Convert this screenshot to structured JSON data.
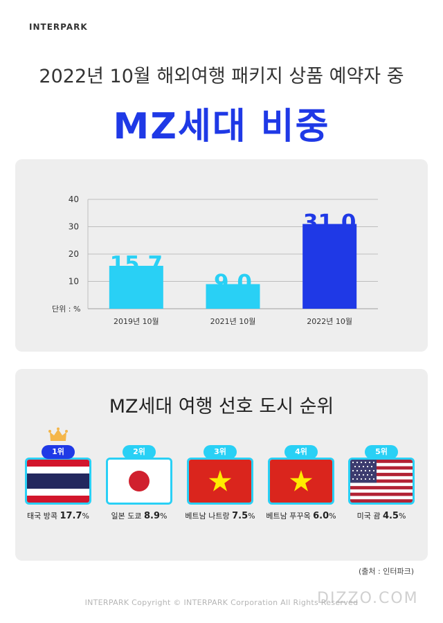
{
  "brand": "INTERPARK",
  "subtitle": "2022년 10월 해외여행 패키지 상품 예약자 중",
  "title": "MZ세대 비중",
  "chart_data": {
    "type": "bar",
    "categories": [
      "2019년 10월",
      "2021년 10월",
      "2022년 10월"
    ],
    "values": [
      15.7,
      9.0,
      31.0
    ],
    "value_labels": [
      "15.7",
      "9.0",
      "31.0"
    ],
    "yticks": [
      "10",
      "20",
      "30",
      "40"
    ],
    "ylim": [
      0,
      40
    ],
    "unit_label": "단위 : %",
    "bar_colors": [
      "#29d0f5",
      "#29d0f5",
      "#1f39e6"
    ],
    "grid": true
  },
  "ranking": {
    "title": "MZ세대 여행 선호 도시 순위",
    "items": [
      {
        "rank": "1위",
        "city": "태국 방콕",
        "pct": "17.7",
        "flag": "thailand-flag"
      },
      {
        "rank": "2위",
        "city": "일본 도쿄",
        "pct": "8.9",
        "flag": "japan-flag"
      },
      {
        "rank": "3위",
        "city": "베트남 나트랑",
        "pct": "7.5",
        "flag": "vietnam-flag"
      },
      {
        "rank": "4위",
        "city": "베트남 푸꾸옥",
        "pct": "6.0",
        "flag": "vietnam-flag"
      },
      {
        "rank": "5위",
        "city": "미국 괌",
        "pct": "4.5",
        "flag": "usa-flag"
      }
    ],
    "pct_unit": "%"
  },
  "source": "(출처 : 인터파크)",
  "copyright": "INTERPARK Copyright © INTERPARK Corporation All Rights Reserved",
  "watermark": "DIZZO.COM",
  "colors": {
    "accent": "#1f39e6",
    "light": "#29d0f5",
    "panel": "#eeeeee"
  }
}
